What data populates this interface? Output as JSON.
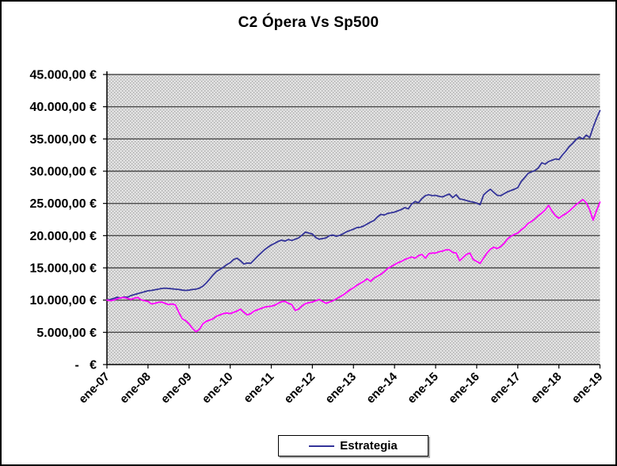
{
  "title": "C2 Ópera Vs Sp500",
  "legend": {
    "items": [
      {
        "label": "Estrategia",
        "color": "#333399"
      }
    ]
  },
  "y_axis": {
    "min": 0,
    "max": 45000,
    "step": 5000,
    "tick_labels": [
      "45.000,00 €",
      "40.000,00 €",
      "35.000,00 €",
      "30.000,00 €",
      "25.000,00 €",
      "20.000,00 €",
      "15.000,00 €",
      "10.000,00 €",
      "5.000,00 €",
      "-   €"
    ]
  },
  "x_axis": {
    "tick_labels": [
      "ene-07",
      "ene-08",
      "ene-09",
      "ene-10",
      "ene-11",
      "ene-12",
      "ene-13",
      "ene-14",
      "ene-15",
      "ene-16",
      "ene-17",
      "ene-18",
      "ene-19"
    ],
    "points_per_tick": 12
  },
  "chart_data": {
    "type": "line",
    "title": "C2 Ópera Vs Sp500",
    "xlabel": "",
    "ylabel": "",
    "ylim": [
      0,
      45000
    ],
    "grid": "horizontal",
    "legend_position": "bottom",
    "plot_bg": "#d9d9d9",
    "plot_dot_dark": "#aeaeae",
    "plot_dot_light": "#ececec",
    "gridline_color": "#4b4b4b",
    "x_unit": "month",
    "x_start": "ene-07",
    "x_end": "ene-19",
    "categories": [
      "ene-07",
      "ene-08",
      "ene-09",
      "ene-10",
      "ene-11",
      "ene-12",
      "ene-13",
      "ene-14",
      "ene-15",
      "ene-16",
      "ene-17",
      "ene-18",
      "ene-19"
    ],
    "series": [
      {
        "name": "Estrategia",
        "color": "#333399",
        "values": [
          10000,
          10100,
          10250,
          10450,
          10300,
          10500,
          10450,
          10700,
          10850,
          11000,
          11150,
          11300,
          11450,
          11500,
          11600,
          11700,
          11800,
          11850,
          11800,
          11750,
          11700,
          11650,
          11550,
          11500,
          11550,
          11650,
          11700,
          11850,
          12150,
          12650,
          13250,
          13900,
          14450,
          14750,
          15100,
          15500,
          15800,
          16300,
          16500,
          16100,
          15600,
          15750,
          15700,
          16250,
          16800,
          17300,
          17800,
          18200,
          18550,
          18800,
          19100,
          19300,
          19150,
          19400,
          19250,
          19450,
          19650,
          20100,
          20550,
          20400,
          20250,
          19700,
          19450,
          19550,
          19650,
          20000,
          20100,
          19900,
          20050,
          20300,
          20600,
          20800,
          21000,
          21250,
          21300,
          21500,
          21800,
          22100,
          22350,
          22900,
          23300,
          23200,
          23450,
          23550,
          23650,
          23850,
          24050,
          24350,
          24150,
          24900,
          25300,
          25100,
          25750,
          26200,
          26350,
          26200,
          26250,
          26100,
          26000,
          26250,
          26450,
          25900,
          26350,
          25700,
          25600,
          25450,
          25300,
          25200,
          25050,
          24800,
          26300,
          26800,
          27200,
          26700,
          26250,
          26200,
          26500,
          26800,
          27000,
          27200,
          27450,
          28400,
          29000,
          29650,
          29900,
          30100,
          30500,
          31300,
          31100,
          31500,
          31700,
          31900,
          31800,
          32500,
          33100,
          33800,
          34300,
          34900,
          35300,
          35000,
          35600,
          35200,
          36800,
          38200,
          39400
        ]
      },
      {
        "name": "Sp500",
        "color": "#ff00ff",
        "values": [
          10000,
          9900,
          10000,
          10200,
          10350,
          10400,
          10250,
          10100,
          10300,
          10400,
          10050,
          9900,
          9800,
          9400,
          9500,
          9650,
          9700,
          9500,
          9300,
          9400,
          9250,
          8100,
          7100,
          6800,
          6300,
          5600,
          5100,
          5450,
          6300,
          6700,
          6900,
          7100,
          7500,
          7700,
          7900,
          8000,
          7900,
          8100,
          8300,
          8600,
          8100,
          7700,
          7900,
          8300,
          8500,
          8700,
          8900,
          9000,
          9050,
          9200,
          9500,
          9750,
          9800,
          9500,
          9300,
          8400,
          8600,
          9100,
          9450,
          9600,
          9700,
          9900,
          10100,
          9800,
          9500,
          9700,
          9900,
          10200,
          10500,
          10800,
          11200,
          11600,
          11900,
          12300,
          12600,
          12900,
          13300,
          12900,
          13400,
          13700,
          14000,
          14400,
          14900,
          15200,
          15500,
          15800,
          16000,
          16300,
          16500,
          16700,
          16500,
          16900,
          17100,
          16500,
          17200,
          17300,
          17300,
          17500,
          17600,
          17800,
          17800,
          17400,
          17300,
          16100,
          16600,
          17100,
          17300,
          16300,
          16000,
          15700,
          16500,
          17300,
          17900,
          18200,
          18000,
          18300,
          18800,
          19500,
          19900,
          20200,
          20400,
          20900,
          21300,
          21900,
          22200,
          22600,
          23100,
          23500,
          24000,
          24700,
          23800,
          23100,
          22700,
          23100,
          23400,
          23800,
          24300,
          24800,
          25200,
          25600,
          25100,
          24000,
          22400,
          23900,
          25200
        ]
      }
    ]
  }
}
